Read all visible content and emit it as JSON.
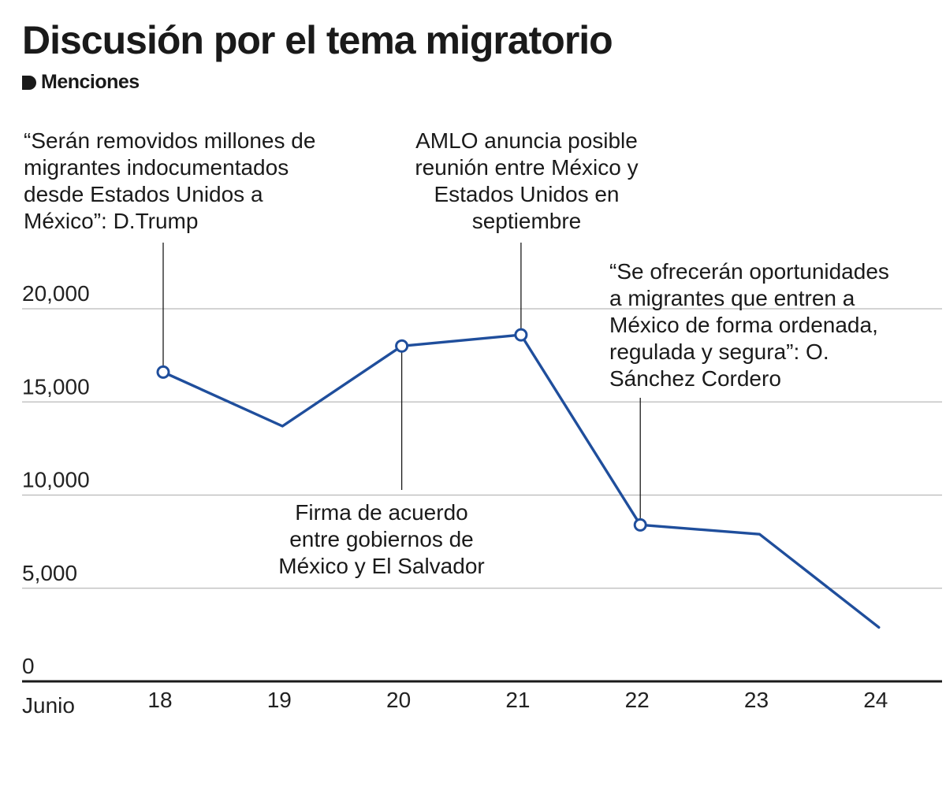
{
  "header": {
    "title": "Discusión por el tema migratorio",
    "subtitle": "Menciones"
  },
  "colors": {
    "line": "#1f4e9c",
    "grid": "#b9b9b9",
    "axis": "#1a1a1a",
    "text": "#1a1a1a"
  },
  "chart_data": {
    "type": "line",
    "title": "Discusión por el tema migratorio",
    "ylabel": "Menciones",
    "xlabel": "Junio",
    "categories": [
      "18",
      "19",
      "20",
      "21",
      "22",
      "23",
      "24"
    ],
    "values": [
      16600,
      13700,
      18000,
      18600,
      8400,
      7900,
      2900
    ],
    "ylim": [
      0,
      20000
    ],
    "yticks": [
      0,
      5000,
      10000,
      15000,
      20000
    ],
    "ytick_labels": [
      "0",
      "5,000",
      "10,000",
      "15,000",
      "20,000"
    ],
    "grid": true,
    "annotations": [
      {
        "category": "18",
        "lines": [
          "“Serán removidos millones de",
          "migrantes indocumentados",
          "desde Estados Unidos  a",
          "México”: D.Trump"
        ]
      },
      {
        "category": "20",
        "lines": [
          "Firma de acuerdo",
          "entre gobiernos  de",
          "México y El Salvador"
        ]
      },
      {
        "category": "21",
        "lines": [
          "AMLO anuncia posible",
          "reunión entre México y",
          "Estados Unidos en",
          "septiembre"
        ]
      },
      {
        "category": "22",
        "lines": [
          "“Se ofrecerán oportunidades",
          "a migrantes  que entren a",
          "México de forma  ordenada,",
          "regulada y segura”: O.",
          "Sánchez Cordero"
        ]
      }
    ]
  }
}
